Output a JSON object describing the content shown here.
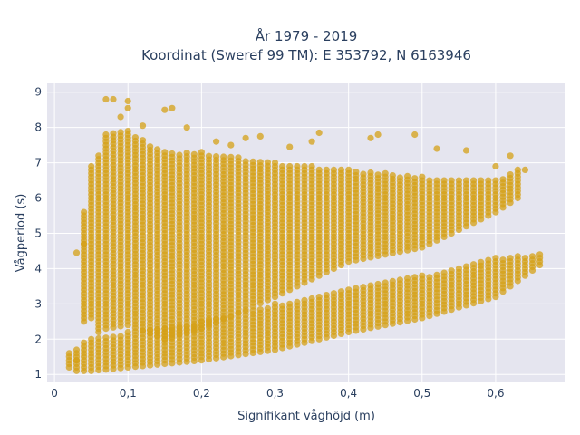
{
  "chart_data": {
    "type": "scatter",
    "title_line1": "År 1979 - 2019",
    "title_line2": "Koordinat (Sweref 99 TM): E 353792, N 6163946",
    "xlabel": "Signifikant våghöjd (m)",
    "ylabel": "Vågperiod (s)",
    "xlim": [
      -0.01,
      0.695
    ],
    "ylim": [
      0.8,
      9.25
    ],
    "xticks": [
      0,
      0.1,
      0.2,
      0.3,
      0.4,
      0.5,
      0.6
    ],
    "xtick_labels": [
      "0",
      "0,1",
      "0,2",
      "0,3",
      "0,4",
      "0,5",
      "0,6"
    ],
    "yticks": [
      1,
      2,
      3,
      4,
      5,
      6,
      7,
      8,
      9
    ],
    "ytick_labels": [
      "1",
      "2",
      "3",
      "4",
      "5",
      "6",
      "7",
      "8",
      "9"
    ],
    "grid": true,
    "marker_color": "#D4A017",
    "plot_background": "#E5E5EF",
    "x_step": 0.01,
    "lower_band": [
      {
        "x": 0.02,
        "y": [
          1.2,
          1.6
        ]
      },
      {
        "x": 0.03,
        "y": [
          1.1,
          1.7
        ]
      },
      {
        "x": 0.04,
        "y": [
          1.1,
          1.9
        ]
      },
      {
        "x": 0.05,
        "y": [
          1.1,
          2.0
        ]
      },
      {
        "x": 0.1,
        "y": [
          1.2,
          2.2
        ]
      },
      {
        "x": 0.2,
        "y": [
          1.4,
          2.5
        ]
      },
      {
        "x": 0.3,
        "y": [
          1.7,
          3.0
        ]
      },
      {
        "x": 0.4,
        "y": [
          2.2,
          3.4
        ]
      },
      {
        "x": 0.5,
        "y": [
          2.6,
          3.8
        ]
      },
      {
        "x": 0.6,
        "y": [
          3.2,
          4.3
        ]
      },
      {
        "x": 0.66,
        "y": [
          4.1,
          4.4
        ]
      }
    ],
    "upper_band": [
      {
        "x": 0.04,
        "y": [
          2.5,
          5.6
        ]
      },
      {
        "x": 0.05,
        "y": [
          2.6,
          6.9
        ]
      },
      {
        "x": 0.06,
        "y": [
          2.2,
          7.2
        ]
      },
      {
        "x": 0.07,
        "y": [
          2.3,
          7.8
        ]
      },
      {
        "x": 0.1,
        "y": [
          2.4,
          7.9
        ]
      },
      {
        "x": 0.15,
        "y": [
          2.0,
          7.3
        ]
      },
      {
        "x": 0.2,
        "y": [
          2.3,
          7.3
        ]
      },
      {
        "x": 0.3,
        "y": [
          3.2,
          7.0
        ]
      },
      {
        "x": 0.4,
        "y": [
          4.2,
          6.8
        ]
      },
      {
        "x": 0.5,
        "y": [
          4.6,
          6.6
        ]
      },
      {
        "x": 0.6,
        "y": [
          5.6,
          6.5
        ]
      },
      {
        "x": 0.63,
        "y": [
          6.0,
          6.8
        ]
      }
    ],
    "outliers": [
      {
        "x": 0.07,
        "y": 8.8
      },
      {
        "x": 0.08,
        "y": 8.8
      },
      {
        "x": 0.1,
        "y": 8.75
      },
      {
        "x": 0.1,
        "y": 8.55
      },
      {
        "x": 0.09,
        "y": 8.3
      },
      {
        "x": 0.15,
        "y": 8.5
      },
      {
        "x": 0.16,
        "y": 8.55
      },
      {
        "x": 0.12,
        "y": 8.05
      },
      {
        "x": 0.18,
        "y": 8.0
      },
      {
        "x": 0.26,
        "y": 7.7
      },
      {
        "x": 0.28,
        "y": 7.75
      },
      {
        "x": 0.36,
        "y": 7.85
      },
      {
        "x": 0.43,
        "y": 7.7
      },
      {
        "x": 0.44,
        "y": 7.8
      },
      {
        "x": 0.49,
        "y": 7.8
      },
      {
        "x": 0.52,
        "y": 7.4
      },
      {
        "x": 0.56,
        "y": 7.35
      },
      {
        "x": 0.35,
        "y": 7.6
      },
      {
        "x": 0.22,
        "y": 7.6
      },
      {
        "x": 0.24,
        "y": 7.5
      },
      {
        "x": 0.32,
        "y": 7.45
      },
      {
        "x": 0.03,
        "y": 4.45
      },
      {
        "x": 0.04,
        "y": 4.7
      },
      {
        "x": 0.62,
        "y": 7.2
      },
      {
        "x": 0.6,
        "y": 6.9
      },
      {
        "x": 0.64,
        "y": 6.8
      },
      {
        "x": 0.03,
        "y": 1.4
      }
    ]
  }
}
